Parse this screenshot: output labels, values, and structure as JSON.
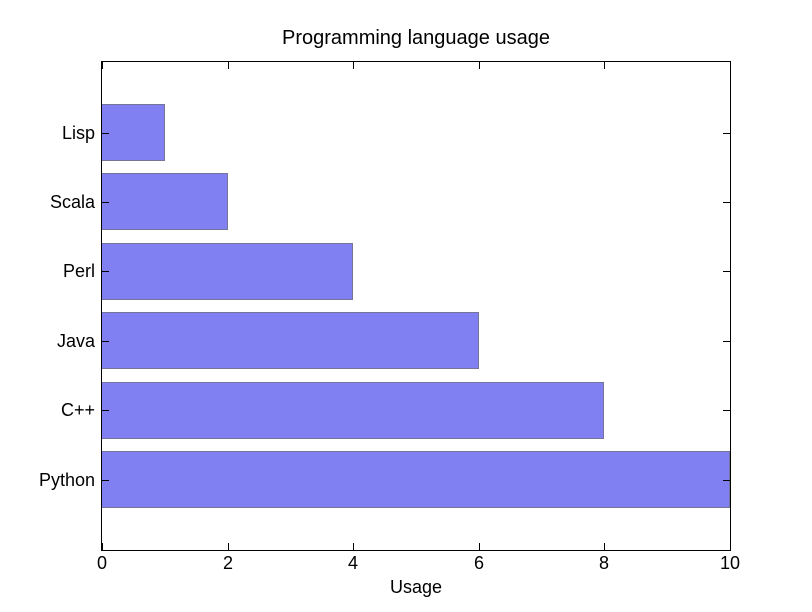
{
  "chart_data": {
    "type": "bar",
    "orientation": "horizontal",
    "title": "Programming language usage",
    "xlabel": "Usage",
    "ylabel": "",
    "categories": [
      "Lisp",
      "Scala",
      "Perl",
      "Java",
      "C++",
      "Python"
    ],
    "values": [
      1,
      2,
      4,
      6,
      8,
      10
    ],
    "xlim": [
      0,
      10
    ],
    "xticks": [
      0,
      2,
      4,
      6,
      8,
      10
    ],
    "xtick_labels": [
      "0",
      "2",
      "4",
      "6",
      "8",
      "10"
    ],
    "grid": "off",
    "legend": "none",
    "bar_color": "#8080f2",
    "bar_edge_color": "#75759a",
    "axis_color": "#000000",
    "text_color": "#000000",
    "background_color": "#ffffff"
  }
}
